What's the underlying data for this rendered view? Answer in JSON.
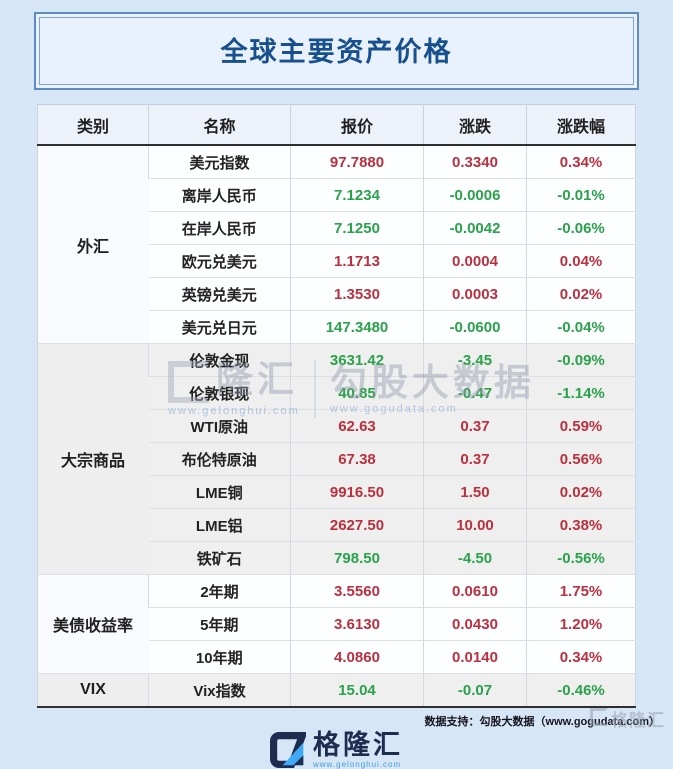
{
  "title": "全球主要资产价格",
  "colors": {
    "up": "#b9303f",
    "down": "#2aa14b",
    "title": "#17508c",
    "brand_navy": "#1e2c50",
    "brand_blue": "#3fa0e0"
  },
  "table": {
    "headers": [
      "类别",
      "名称",
      "报价",
      "涨跌",
      "涨跌幅"
    ],
    "sections": [
      {
        "category": "外汇",
        "tone": "light",
        "rows": [
          {
            "name": "美元指数",
            "price": "97.7880",
            "change": "0.3340",
            "pct": "0.34%",
            "dir": "up"
          },
          {
            "name": "离岸人民币",
            "price": "7.1234",
            "change": "-0.0006",
            "pct": "-0.01%",
            "dir": "down"
          },
          {
            "name": "在岸人民币",
            "price": "7.1250",
            "change": "-0.0042",
            "pct": "-0.06%",
            "dir": "down"
          },
          {
            "name": "欧元兑美元",
            "price": "1.1713",
            "change": "0.0004",
            "pct": "0.04%",
            "dir": "up"
          },
          {
            "name": "英镑兑美元",
            "price": "1.3530",
            "change": "0.0003",
            "pct": "0.02%",
            "dir": "up"
          },
          {
            "name": "美元兑日元",
            "price": "147.3480",
            "change": "-0.0600",
            "pct": "-0.04%",
            "dir": "down"
          }
        ]
      },
      {
        "category": "大宗商品",
        "tone": "gray",
        "rows": [
          {
            "name": "伦敦金现",
            "price": "3631.42",
            "change": "-3.45",
            "pct": "-0.09%",
            "dir": "down"
          },
          {
            "name": "伦敦银现",
            "price": "40.85",
            "change": "-0.47",
            "pct": "-1.14%",
            "dir": "down"
          },
          {
            "name": "WTI原油",
            "price": "62.63",
            "change": "0.37",
            "pct": "0.59%",
            "dir": "up"
          },
          {
            "name": "布伦特原油",
            "price": "67.38",
            "change": "0.37",
            "pct": "0.56%",
            "dir": "up"
          },
          {
            "name": "LME铜",
            "price": "9916.50",
            "change": "1.50",
            "pct": "0.02%",
            "dir": "up"
          },
          {
            "name": "LME铝",
            "price": "2627.50",
            "change": "10.00",
            "pct": "0.38%",
            "dir": "up"
          },
          {
            "name": "铁矿石",
            "price": "798.50",
            "change": "-4.50",
            "pct": "-0.56%",
            "dir": "down"
          }
        ]
      },
      {
        "category": "美债收益率",
        "tone": "light",
        "rows": [
          {
            "name": "2年期",
            "price": "3.5560",
            "change": "0.0610",
            "pct": "1.75%",
            "dir": "up"
          },
          {
            "name": "5年期",
            "price": "3.6130",
            "change": "0.0430",
            "pct": "1.20%",
            "dir": "up"
          },
          {
            "name": "10年期",
            "price": "4.0860",
            "change": "0.0140",
            "pct": "0.34%",
            "dir": "up"
          }
        ]
      },
      {
        "category": "VIX",
        "tone": "gray",
        "rows": [
          {
            "name": "Vix指数",
            "price": "15.04",
            "change": "-0.07",
            "pct": "-0.46%",
            "dir": "down"
          }
        ]
      }
    ]
  },
  "watermark_center": {
    "brand": "隆汇",
    "brand_url": "www.gelonghui.com",
    "partner": "勾股大数据",
    "partner_url": "www.gogudata.com"
  },
  "footer": {
    "credit": "数据支持：勾股大数据（www.gogudata.com）",
    "logo_text": "格隆汇",
    "logo_url": "www.gelonghui.com",
    "corner_watermark": "格隆汇"
  },
  "chart_data": {
    "type": "table",
    "title": "全球主要资产价格",
    "columns": [
      "类别",
      "名称",
      "报价",
      "涨跌",
      "涨跌幅"
    ],
    "rows": [
      [
        "外汇",
        "美元指数",
        97.788,
        0.334,
        "0.34%"
      ],
      [
        "外汇",
        "离岸人民币",
        7.1234,
        -0.0006,
        "-0.01%"
      ],
      [
        "外汇",
        "在岸人民币",
        7.125,
        -0.0042,
        "-0.06%"
      ],
      [
        "外汇",
        "欧元兑美元",
        1.1713,
        0.0004,
        "0.04%"
      ],
      [
        "外汇",
        "英镑兑美元",
        1.353,
        0.0003,
        "0.02%"
      ],
      [
        "外汇",
        "美元兑日元",
        147.348,
        -0.06,
        "-0.04%"
      ],
      [
        "大宗商品",
        "伦敦金现",
        3631.42,
        -3.45,
        "-0.09%"
      ],
      [
        "大宗商品",
        "伦敦银现",
        40.85,
        -0.47,
        "-1.14%"
      ],
      [
        "大宗商品",
        "WTI原油",
        62.63,
        0.37,
        "0.59%"
      ],
      [
        "大宗商品",
        "布伦特原油",
        67.38,
        0.37,
        "0.56%"
      ],
      [
        "大宗商品",
        "LME铜",
        9916.5,
        1.5,
        "0.02%"
      ],
      [
        "大宗商品",
        "LME铝",
        2627.5,
        10.0,
        "0.38%"
      ],
      [
        "大宗商品",
        "铁矿石",
        798.5,
        -4.5,
        "-0.56%"
      ],
      [
        "美债收益率",
        "2年期",
        3.556,
        0.061,
        "1.75%"
      ],
      [
        "美债收益率",
        "5年期",
        3.613,
        0.043,
        "1.20%"
      ],
      [
        "美债收益率",
        "10年期",
        4.086,
        0.014,
        "0.34%"
      ],
      [
        "VIX",
        "Vix指数",
        15.04,
        -0.07,
        "-0.46%"
      ]
    ]
  }
}
